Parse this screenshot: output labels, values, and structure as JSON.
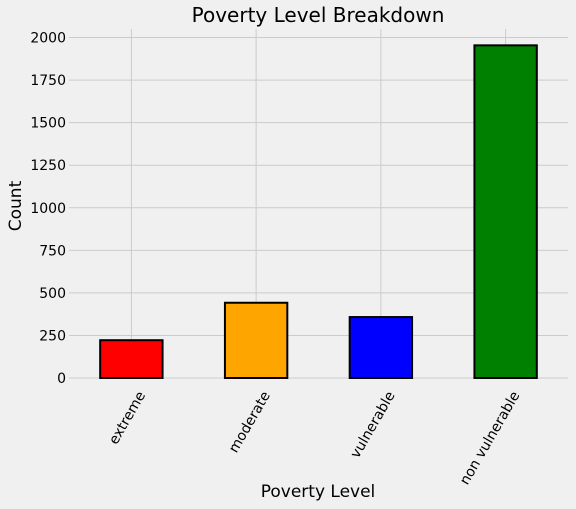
{
  "chart_data": {
    "type": "bar",
    "title": "Poverty Level Breakdown",
    "xlabel": "Poverty Level",
    "ylabel": "Count",
    "categories": [
      "extreme",
      "moderate",
      "vulnerable",
      "non vulnerable"
    ],
    "values": [
      222,
      442,
      358,
      1954
    ],
    "colors": [
      "#ff0000",
      "#ffa500",
      "#0000ff",
      "#008000"
    ],
    "ylim": [
      0,
      2050
    ],
    "yticks": [
      0,
      250,
      500,
      750,
      1000,
      1250,
      1500,
      1750,
      2000
    ],
    "grid": true,
    "tick_label_rotation": -60
  }
}
